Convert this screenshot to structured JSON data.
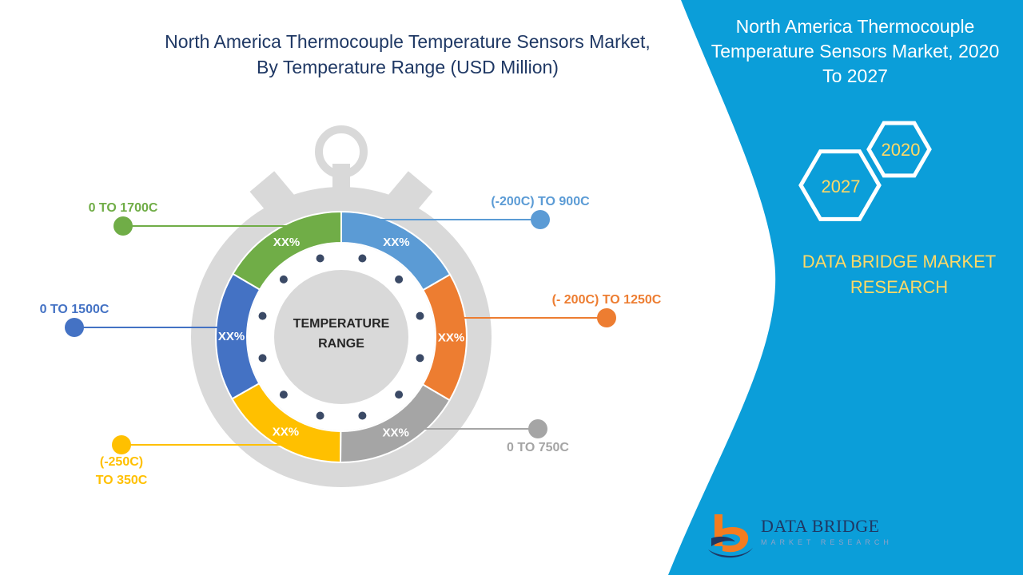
{
  "chart_data": {
    "type": "pie",
    "title_lines": [
      "North America Thermocouple Temperature Sensors Market,",
      "By Temperature Range (USD Million)"
    ],
    "center_label": [
      "TEMPERATURE",
      "RANGE"
    ],
    "segments": [
      {
        "category": "(-200C) TO 900C",
        "label_lines": [
          "(-200C) TO 900C"
        ],
        "value_label": "XX%",
        "share": 0.167,
        "color": "#5b9bd5",
        "side": "right"
      },
      {
        "category": "(- 200C) TO 1250C",
        "label_lines": [
          "(- 200C) TO 1250C"
        ],
        "value_label": "XX%",
        "share": 0.167,
        "color": "#ed7d31",
        "side": "right"
      },
      {
        "category": "0 TO 750C",
        "label_lines": [
          "0 TO 750C"
        ],
        "value_label": "XX%",
        "share": 0.167,
        "color": "#a5a5a5",
        "side": "right"
      },
      {
        "category": "(-250C) TO 350C",
        "label_lines": [
          "(-250C)",
          "TO 350C"
        ],
        "value_label": "XX%",
        "share": 0.167,
        "color": "#ffc000",
        "side": "left"
      },
      {
        "category": "0 TO 1500C",
        "label_lines": [
          "0 TO 1500C"
        ],
        "value_label": "XX%",
        "share": 0.166,
        "color": "#4472c4",
        "side": "left"
      },
      {
        "category": "0 TO 1700C",
        "label_lines": [
          "0 TO 1700C"
        ],
        "value_label": "XX%",
        "share": 0.166,
        "color": "#70ad47",
        "side": "left"
      }
    ]
  },
  "panel": {
    "title_lines": [
      "North America Thermocouple",
      "Temperature Sensors Market, 2020",
      "To 2027"
    ],
    "years": [
      "2020",
      "2027"
    ],
    "brand_lines": [
      "DATA BRIDGE MARKET",
      "RESEARCH"
    ],
    "accent_color": "#0b9ed9",
    "brand_color": "#ffd966"
  },
  "logo": {
    "name": "DATA BRIDGE",
    "tagline": "MARKET RESEARCH"
  }
}
